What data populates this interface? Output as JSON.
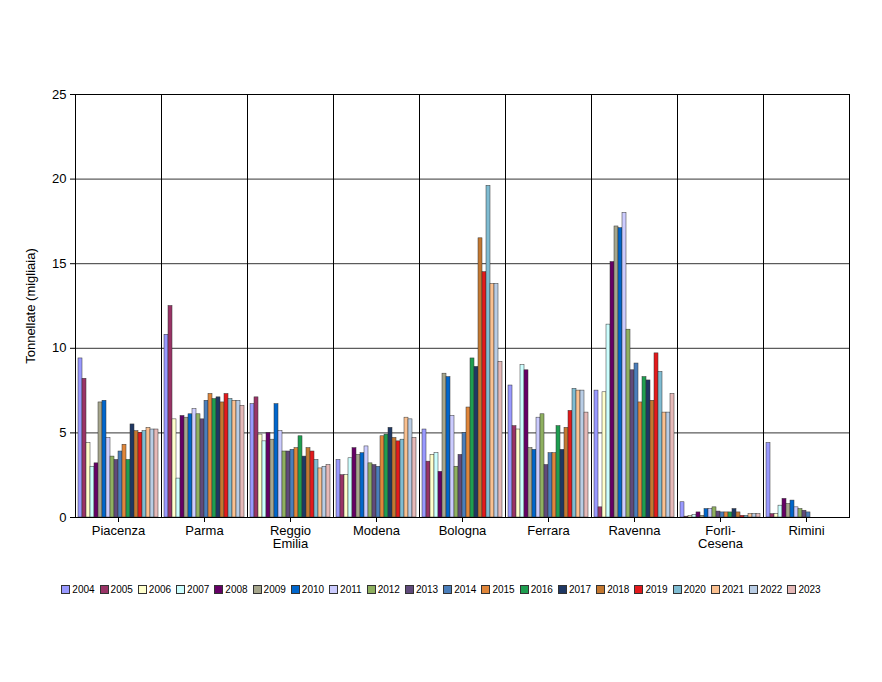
{
  "chart_data": {
    "type": "bar",
    "y_label": "Tonnellate (migliaia)",
    "categories": [
      "Piacenza",
      "Parma",
      "Reggio\nEmilia",
      "Modena",
      "Bologna",
      "Ferrara",
      "Ravenna",
      "Forlì-\nCesena",
      "Rimini"
    ],
    "series": [
      {
        "name": "2004",
        "color": "#9999ff",
        "values": [
          9.4,
          10.8,
          6.7,
          3.4,
          5.2,
          7.8,
          7.5,
          0.9,
          4.4
        ]
      },
      {
        "name": "2005",
        "color": "#993366",
        "values": [
          8.2,
          12.5,
          7.1,
          2.5,
          3.3,
          5.4,
          0.6,
          0.05,
          0.2
        ]
      },
      {
        "name": "2006",
        "color": "#ffffcc",
        "values": [
          4.4,
          5.8,
          4.9,
          2.5,
          3.7,
          5.2,
          7.4,
          0.1,
          0.2
        ]
      },
      {
        "name": "2007",
        "color": "#ccffff",
        "values": [
          3.0,
          2.3,
          4.5,
          3.5,
          3.8,
          9.0,
          11.4,
          0.15,
          0.7
        ]
      },
      {
        "name": "2008",
        "color": "#660066",
        "values": [
          3.2,
          6.0,
          5.0,
          4.1,
          2.7,
          8.7,
          15.1,
          0.3,
          1.1
        ]
      },
      {
        "name": "2009",
        "color": "#a6a68c",
        "values": [
          6.8,
          5.9,
          4.6,
          3.7,
          8.5,
          4.1,
          17.2,
          0.1,
          0.8
        ]
      },
      {
        "name": "2010",
        "color": "#0066cc",
        "values": [
          6.9,
          6.1,
          6.7,
          3.8,
          8.3,
          4.0,
          17.1,
          0.5,
          1.0
        ]
      },
      {
        "name": "2011",
        "color": "#ccccff",
        "values": [
          4.7,
          6.4,
          5.1,
          4.2,
          6.0,
          5.9,
          18.0,
          0.5,
          0.6
        ]
      },
      {
        "name": "2012",
        "color": "#8fb060",
        "values": [
          3.6,
          6.1,
          3.9,
          3.2,
          3.0,
          6.1,
          11.1,
          0.6,
          0.5
        ]
      },
      {
        "name": "2013",
        "color": "#604a7b",
        "values": [
          3.4,
          5.8,
          3.9,
          3.1,
          3.7,
          3.1,
          8.7,
          0.35,
          0.4
        ]
      },
      {
        "name": "2014",
        "color": "#4a7ebb",
        "values": [
          3.9,
          6.9,
          4.0,
          3.0,
          5.0,
          3.8,
          9.1,
          0.3,
          0.3
        ]
      },
      {
        "name": "2015",
        "color": "#e0863a",
        "values": [
          4.3,
          7.3,
          4.1,
          4.8,
          6.5,
          3.8,
          6.8,
          0.3,
          0
        ]
      },
      {
        "name": "2016",
        "color": "#1e9e50",
        "values": [
          3.4,
          7.0,
          4.8,
          4.9,
          9.4,
          5.4,
          8.3,
          0.3,
          0
        ]
      },
      {
        "name": "2017",
        "color": "#1f3864",
        "values": [
          5.5,
          7.1,
          3.6,
          5.3,
          8.9,
          4.0,
          8.1,
          0.5,
          0
        ]
      },
      {
        "name": "2018",
        "color": "#c47830",
        "values": [
          5.1,
          6.8,
          4.1,
          4.7,
          16.5,
          5.3,
          6.9,
          0.3,
          0
        ]
      },
      {
        "name": "2019",
        "color": "#e31a1c",
        "values": [
          5.0,
          7.3,
          3.9,
          4.5,
          14.5,
          6.3,
          9.7,
          0.1,
          0
        ]
      },
      {
        "name": "2020",
        "color": "#7fbcd2",
        "values": [
          5.1,
          7.0,
          3.4,
          4.6,
          19.6,
          7.6,
          8.6,
          0.1,
          0
        ]
      },
      {
        "name": "2021",
        "color": "#fac090",
        "values": [
          5.3,
          6.9,
          2.9,
          5.9,
          13.8,
          7.5,
          6.2,
          0.2,
          0
        ]
      },
      {
        "name": "2022",
        "color": "#b9cde5",
        "values": [
          5.2,
          6.9,
          3.0,
          5.8,
          13.8,
          7.5,
          6.2,
          0.2,
          0
        ]
      },
      {
        "name": "2023",
        "color": "#e6b9b8",
        "values": [
          5.2,
          6.6,
          3.1,
          4.7,
          9.2,
          6.2,
          7.3,
          0.2,
          0
        ]
      }
    ],
    "ylim": [
      0,
      25
    ],
    "yticks": [
      0,
      5,
      10,
      15,
      20,
      25
    ],
    "grid": true,
    "legend": "bottom"
  }
}
